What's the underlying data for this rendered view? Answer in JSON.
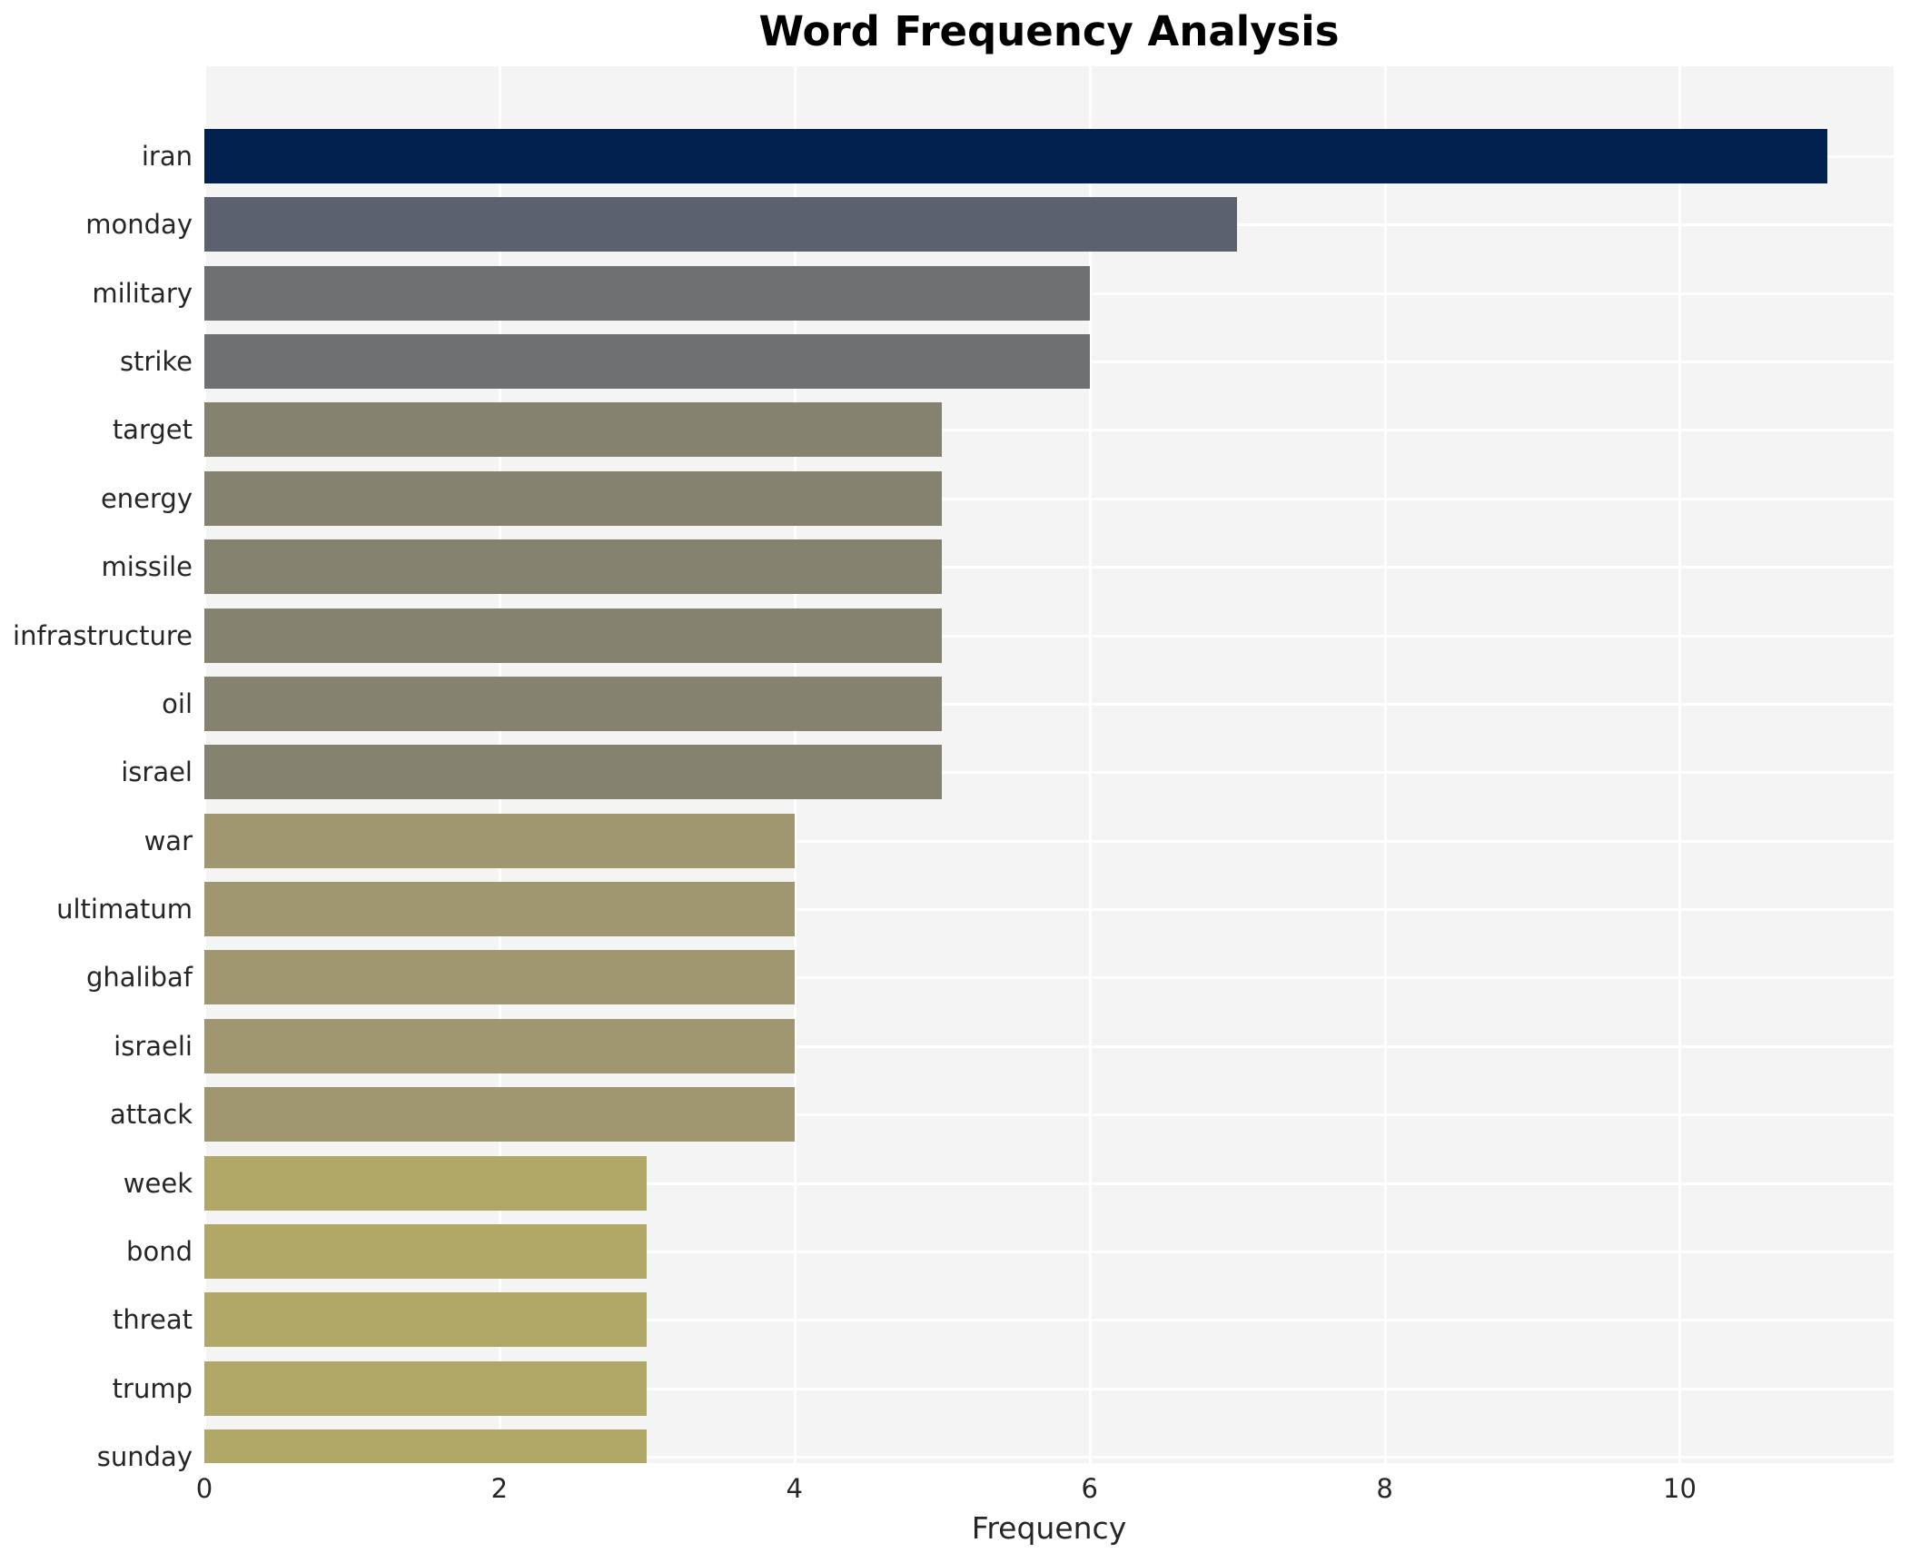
{
  "chart_data": {
    "type": "bar",
    "orientation": "horizontal",
    "title": "Word Frequency Analysis",
    "xlabel": "Frequency",
    "ylabel": "",
    "categories": [
      "iran",
      "monday",
      "military",
      "strike",
      "target",
      "energy",
      "missile",
      "infrastructure",
      "oil",
      "israel",
      "war",
      "ultimatum",
      "ghalibaf",
      "israeli",
      "attack",
      "week",
      "bond",
      "threat",
      "trump",
      "sunday"
    ],
    "values": [
      11,
      7,
      6,
      6,
      5,
      5,
      5,
      5,
      5,
      5,
      4,
      4,
      4,
      4,
      4,
      3,
      3,
      3,
      3,
      3
    ],
    "bar_colors": [
      "#02214e",
      "#5c6170",
      "#6f7072",
      "#6f7072",
      "#858270",
      "#858270",
      "#858270",
      "#858270",
      "#858270",
      "#858270",
      "#a09770",
      "#a09770",
      "#a09770",
      "#a09770",
      "#a09770",
      "#b1a766",
      "#b1a766",
      "#b1a766",
      "#b1a766",
      "#b1a766"
    ],
    "xticks": [
      0,
      2,
      4,
      6,
      8,
      10
    ],
    "xlim": [
      0,
      11.45
    ],
    "grid": true,
    "legend": "none",
    "plot_background": "#f4f4f5",
    "grid_color": "#ffffff",
    "text_color": "#262626",
    "title_color": "#000000"
  }
}
